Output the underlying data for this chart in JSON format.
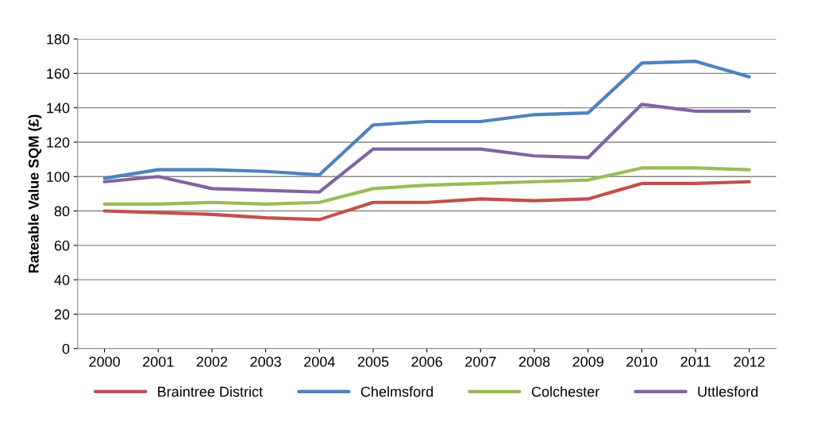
{
  "chart_data": {
    "type": "line",
    "ylabel": "Rateable Value SQM (£)",
    "categories": [
      "2000",
      "2001",
      "2002",
      "2003",
      "2004",
      "2005",
      "2006",
      "2007",
      "2008",
      "2009",
      "2010",
      "2011",
      "2012"
    ],
    "series": [
      {
        "name": "Braintree District",
        "color": "#c0504d",
        "values": [
          80,
          79,
          78,
          76,
          75,
          85,
          85,
          87,
          86,
          87,
          96,
          96,
          97
        ]
      },
      {
        "name": "Chelmsford",
        "color": "#4f81bd",
        "values": [
          99,
          104,
          104,
          103,
          101,
          130,
          132,
          132,
          136,
          137,
          166,
          167,
          158
        ]
      },
      {
        "name": "Colchester",
        "color": "#9bbb59",
        "values": [
          84,
          84,
          85,
          84,
          85,
          93,
          95,
          96,
          97,
          98,
          105,
          105,
          104
        ]
      },
      {
        "name": "Uttlesford",
        "color": "#8064a2",
        "values": [
          97,
          100,
          93,
          92,
          91,
          116,
          116,
          116,
          112,
          111,
          142,
          138,
          138
        ]
      }
    ],
    "ylim": [
      0,
      180
    ],
    "yticks": [
      0,
      20,
      40,
      60,
      80,
      100,
      120,
      140,
      160,
      180
    ],
    "grid": "y",
    "legend": "bottom",
    "marker": "none",
    "line_style": "solid"
  }
}
